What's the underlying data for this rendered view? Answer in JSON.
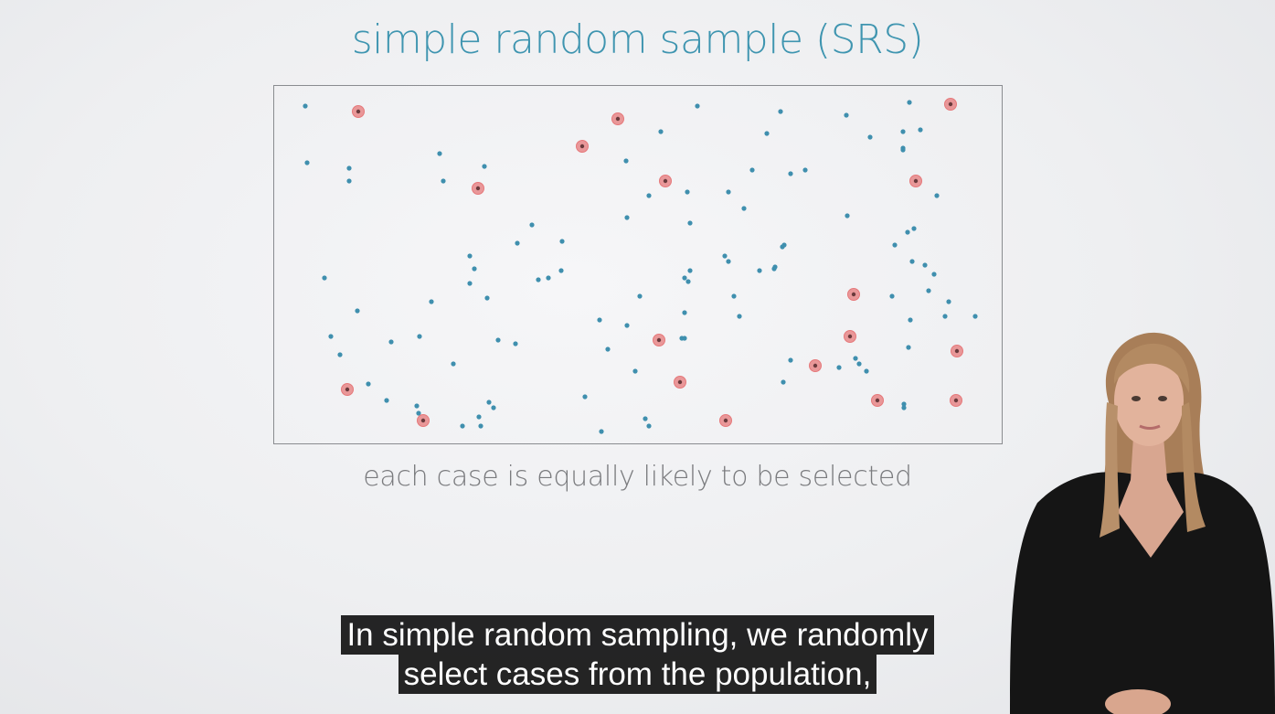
{
  "slide": {
    "title": "simple random sample (SRS)",
    "caption": "each case is equally likely to be selected"
  },
  "subtitles": {
    "line1": "In simple random sampling, we randomly",
    "line2": "select cases from the population,"
  },
  "colors": {
    "title": "#3f95b0",
    "population_dot": "#3f8fae",
    "selected_dot": "#e6787a",
    "box_border": "#8a8c90",
    "caption": "#7a7b7e",
    "subtitle_bg": "#080808"
  },
  "presenter": {
    "icon": "presenter-woman-figure"
  },
  "chart_data": {
    "type": "scatter",
    "title": "simple random sample (SRS)",
    "xlabel": "",
    "ylabel": "",
    "grid": false,
    "series": [
      {
        "values": [
          [
            34,
            22
          ],
          [
            36,
            84
          ],
          [
            82,
            90
          ],
          [
            82,
            104
          ],
          [
            181,
            74
          ],
          [
            185,
            104
          ],
          [
            230,
            88
          ],
          [
            282,
            152
          ],
          [
            266,
            172
          ],
          [
            214,
            186
          ],
          [
            219,
            200
          ],
          [
            214,
            216
          ],
          [
            233,
            232
          ],
          [
            315,
            170
          ],
          [
            314,
            202
          ],
          [
            289,
            212
          ],
          [
            300,
            210
          ],
          [
            172,
            236
          ],
          [
            55,
            210
          ],
          [
            91,
            246
          ],
          [
            62,
            274
          ],
          [
            72,
            294
          ],
          [
            128,
            280
          ],
          [
            159,
            274
          ],
          [
            196,
            304
          ],
          [
            245,
            278
          ],
          [
            103,
            326
          ],
          [
            123,
            344
          ],
          [
            156,
            350
          ],
          [
            158,
            358
          ],
          [
            206,
            372
          ],
          [
            224,
            362
          ],
          [
            240,
            352
          ],
          [
            385,
            82
          ],
          [
            423,
            50
          ],
          [
            463,
            22
          ],
          [
            386,
            144
          ],
          [
            410,
            120
          ],
          [
            452,
            116
          ],
          [
            497,
            116
          ],
          [
            514,
            134
          ],
          [
            455,
            150
          ],
          [
            539,
            52
          ],
          [
            554,
            28
          ],
          [
            523,
            92
          ],
          [
            565,
            96
          ],
          [
            581,
            92
          ],
          [
            626,
            32
          ],
          [
            652,
            56
          ],
          [
            688,
            68
          ],
          [
            707,
            48
          ],
          [
            688,
            70
          ],
          [
            695,
            18
          ],
          [
            688,
            50
          ],
          [
            693,
            160
          ],
          [
            700,
            156
          ],
          [
            725,
            120
          ],
          [
            627,
            142
          ],
          [
            556,
            176
          ],
          [
            558,
            174
          ],
          [
            497,
            192
          ],
          [
            493,
            186
          ],
          [
            531,
            202
          ],
          [
            548,
            198
          ],
          [
            455,
            202
          ],
          [
            400,
            230
          ],
          [
            386,
            262
          ],
          [
            356,
            256
          ],
          [
            365,
            288
          ],
          [
            449,
            210
          ],
          [
            453,
            214
          ],
          [
            449,
            248
          ],
          [
            449,
            276
          ],
          [
            509,
            252
          ],
          [
            565,
            300
          ],
          [
            547,
            200
          ],
          [
            503,
            230
          ],
          [
            446,
            276
          ],
          [
            712,
            196
          ],
          [
            722,
            206
          ],
          [
            738,
            236
          ],
          [
            734,
            252
          ],
          [
            696,
            256
          ],
          [
            676,
            230
          ],
          [
            698,
            192
          ],
          [
            679,
            174
          ],
          [
            716,
            224
          ],
          [
            767,
            252
          ],
          [
            640,
            304
          ],
          [
            648,
            312
          ],
          [
            618,
            308
          ],
          [
            636,
            298
          ],
          [
            557,
            324
          ],
          [
            694,
            286
          ],
          [
            689,
            352
          ],
          [
            689,
            348
          ],
          [
            358,
            378
          ],
          [
            410,
            372
          ],
          [
            340,
            340
          ],
          [
            264,
            282
          ],
          [
            235,
            346
          ],
          [
            226,
            372
          ],
          [
            406,
            364
          ],
          [
            395,
            312
          ]
        ]
      },
      {
        "values": [
          [
            92,
            28
          ],
          [
            376,
            36
          ],
          [
            337,
            66
          ],
          [
            223,
            112
          ],
          [
            428,
            104
          ],
          [
            740,
            20
          ],
          [
            702,
            104
          ],
          [
            634,
            228
          ],
          [
            630,
            274
          ],
          [
            592,
            306
          ],
          [
            747,
            290
          ],
          [
            421,
            278
          ],
          [
            444,
            324
          ],
          [
            80,
            332
          ],
          [
            163,
            366
          ],
          [
            494,
            366
          ],
          [
            660,
            344
          ],
          [
            746,
            344
          ]
        ]
      }
    ]
  }
}
